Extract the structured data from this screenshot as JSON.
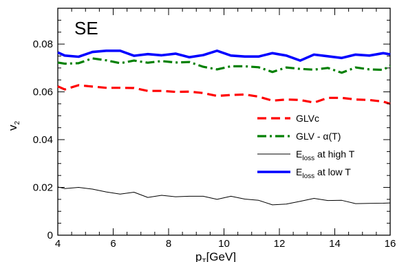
{
  "chart_data": {
    "type": "line",
    "panel_label": "SE",
    "xlabel": {
      "main": "p",
      "sub": "T",
      "suffix": "[GeV]"
    },
    "ylabel": {
      "main": "v",
      "sub": "2"
    },
    "xlim": [
      4,
      16
    ],
    "ylim": [
      0,
      0.095
    ],
    "xticks": [
      4,
      6,
      8,
      10,
      12,
      14,
      16
    ],
    "xtick_labels": [
      "4",
      "6",
      "8",
      "10",
      "12",
      "14",
      "16"
    ],
    "yticks": [
      0,
      0.02,
      0.04,
      0.06,
      0.08
    ],
    "ytick_labels": [
      "0",
      "0.02",
      "0.04",
      "0.06",
      "0.08"
    ],
    "grid": false,
    "legend_position": "right-middle",
    "series": [
      {
        "key": "glvc",
        "legend_main": "GLVc",
        "legend_sub": "",
        "legend_suffix": "",
        "color": "#ff0000",
        "style": "dashed",
        "x": [
          4.0,
          4.25,
          4.75,
          5.25,
          5.75,
          6.25,
          6.75,
          7.25,
          7.75,
          8.25,
          8.75,
          9.25,
          9.75,
          10.25,
          10.75,
          11.25,
          11.75,
          12.25,
          12.75,
          13.25,
          13.75,
          14.25,
          14.75,
          15.25,
          15.75,
          16.0
        ],
        "y": [
          0.0623,
          0.061,
          0.0628,
          0.0622,
          0.0617,
          0.0617,
          0.0616,
          0.0604,
          0.0604,
          0.06,
          0.0601,
          0.0595,
          0.0583,
          0.0587,
          0.0589,
          0.058,
          0.0563,
          0.0568,
          0.0566,
          0.0555,
          0.0575,
          0.0575,
          0.0568,
          0.0566,
          0.0559,
          0.055
        ]
      },
      {
        "key": "glv_alpha",
        "legend_main": "GLV - α(T)",
        "legend_sub": "",
        "legend_suffix": "",
        "color": "#008000",
        "style": "dashdot",
        "x": [
          4.0,
          4.25,
          4.75,
          5.25,
          5.75,
          6.25,
          6.75,
          7.25,
          7.75,
          8.25,
          8.75,
          9.25,
          9.75,
          10.25,
          10.75,
          11.25,
          11.75,
          12.25,
          12.75,
          13.25,
          13.75,
          14.25,
          14.75,
          15.25,
          15.75,
          16.0
        ],
        "y": [
          0.0723,
          0.0718,
          0.072,
          0.074,
          0.0732,
          0.072,
          0.0731,
          0.0722,
          0.0729,
          0.0723,
          0.0725,
          0.0705,
          0.0694,
          0.0707,
          0.0707,
          0.0703,
          0.0683,
          0.0702,
          0.0696,
          0.0693,
          0.07,
          0.068,
          0.0702,
          0.0694,
          0.0692,
          0.071
        ]
      },
      {
        "key": "eloss_high",
        "legend_main": "E",
        "legend_sub": "loss",
        "legend_suffix": " at high T",
        "color": "#000000",
        "style": "solid-thin",
        "x": [
          4.0,
          4.25,
          4.75,
          5.25,
          5.75,
          6.25,
          6.75,
          7.25,
          7.75,
          8.25,
          8.75,
          9.25,
          9.75,
          10.25,
          10.75,
          11.25,
          11.75,
          12.25,
          12.75,
          13.25,
          13.75,
          14.25,
          14.75,
          15.25,
          15.75,
          16.0
        ],
        "y": [
          0.0202,
          0.0195,
          0.02,
          0.0193,
          0.0181,
          0.0172,
          0.018,
          0.0158,
          0.0167,
          0.0161,
          0.0163,
          0.0163,
          0.015,
          0.0163,
          0.0151,
          0.0146,
          0.0127,
          0.013,
          0.0142,
          0.0154,
          0.0145,
          0.0146,
          0.0132,
          0.0133,
          0.0134,
          0.0135
        ]
      },
      {
        "key": "eloss_low",
        "legend_main": "E",
        "legend_sub": "loss",
        "legend_suffix": " at low T",
        "color": "#0000ff",
        "style": "solid-thick",
        "x": [
          4.0,
          4.25,
          4.75,
          5.25,
          5.75,
          6.25,
          6.75,
          7.25,
          7.75,
          8.25,
          8.75,
          9.25,
          9.75,
          10.25,
          10.75,
          11.25,
          11.75,
          12.25,
          12.75,
          13.25,
          13.75,
          14.25,
          14.75,
          15.25,
          15.75,
          16.0
        ],
        "y": [
          0.0765,
          0.0752,
          0.0747,
          0.0767,
          0.0772,
          0.0772,
          0.0751,
          0.0758,
          0.0753,
          0.076,
          0.0745,
          0.0754,
          0.0772,
          0.0752,
          0.0748,
          0.0748,
          0.0762,
          0.0752,
          0.0731,
          0.0756,
          0.0749,
          0.0742,
          0.0756,
          0.0752,
          0.0762,
          0.0757
        ]
      }
    ]
  }
}
